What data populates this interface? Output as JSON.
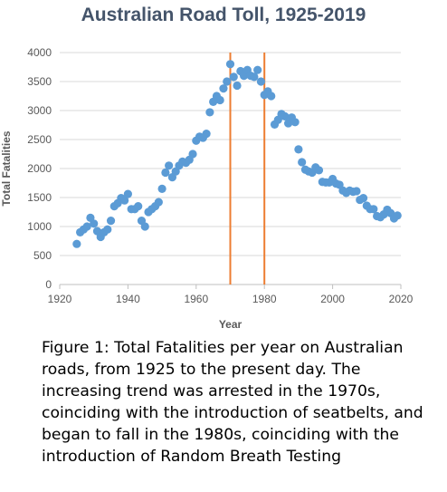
{
  "chart_data": {
    "type": "scatter",
    "title": "Australian Road Toll, 1925-2019",
    "xlabel": "Year",
    "ylabel": "Total Fatalities",
    "xlim": [
      1920,
      2020
    ],
    "ylim": [
      0,
      4000
    ],
    "xticks": [
      1920,
      1940,
      1960,
      1980,
      2000,
      2020
    ],
    "yticks": [
      0,
      500,
      1000,
      1500,
      2000,
      2500,
      3000,
      3500,
      4000
    ],
    "grid": "horizontal",
    "legend": "none",
    "point_color": "#5b9bd5",
    "marker_line_color": "#ed7d31",
    "vertical_markers": [
      1970,
      1980
    ],
    "series": [
      {
        "x": [
          1925,
          1926,
          1927,
          1928,
          1929,
          1930,
          1931,
          1932,
          1933,
          1934,
          1935,
          1936,
          1937,
          1938,
          1939,
          1940,
          1941,
          1942,
          1943,
          1944,
          1945,
          1946,
          1947,
          1948,
          1949,
          1950,
          1951,
          1952,
          1953,
          1954,
          1955,
          1956,
          1957,
          1958,
          1959,
          1960,
          1961,
          1962,
          1963,
          1964,
          1965,
          1966,
          1967,
          1968,
          1969,
          1970,
          1971,
          1972,
          1973,
          1974,
          1975,
          1976,
          1977,
          1978,
          1979,
          1980,
          1981,
          1982,
          1983,
          1984,
          1985,
          1986,
          1987,
          1988,
          1989,
          1990,
          1991,
          1992,
          1993,
          1994,
          1995,
          1996,
          1997,
          1998,
          1999,
          2000,
          2001,
          2002,
          2003,
          2004,
          2005,
          2006,
          2007,
          2008,
          2009,
          2010,
          2011,
          2012,
          2013,
          2014,
          2015,
          2016,
          2017,
          2018,
          2019
        ],
        "y": [
          700,
          900,
          950,
          1000,
          1150,
          1050,
          920,
          820,
          900,
          950,
          1100,
          1350,
          1400,
          1490,
          1450,
          1560,
          1300,
          1300,
          1350,
          1100,
          1000,
          1250,
          1300,
          1350,
          1420,
          1650,
          1930,
          2050,
          1850,
          1950,
          2050,
          2120,
          2100,
          2150,
          2250,
          2480,
          2550,
          2530,
          2600,
          2970,
          3150,
          3250,
          3180,
          3380,
          3500,
          3800,
          3580,
          3430,
          3680,
          3600,
          3700,
          3600,
          3580,
          3700,
          3500,
          3270,
          3330,
          3250,
          2760,
          2840,
          2940,
          2900,
          2780,
          2880,
          2800,
          2330,
          2110,
          1980,
          1950,
          1930,
          2020,
          1970,
          1770,
          1760,
          1760,
          1820,
          1740,
          1720,
          1620,
          1580,
          1620,
          1600,
          1610,
          1460,
          1490,
          1360,
          1300,
          1300,
          1180,
          1160,
          1210,
          1290,
          1230,
          1140,
          1190
        ]
      }
    ]
  },
  "caption": {
    "text": "Figure 1: Total Fatalities per year on Australian roads, from 1925 to the present day.  The increasing trend was arrested in the 1970s, coinciding with the introduction of seatbelts, and began to fall in the 1980s, coinciding with the introduction of Random Breath Testing"
  }
}
